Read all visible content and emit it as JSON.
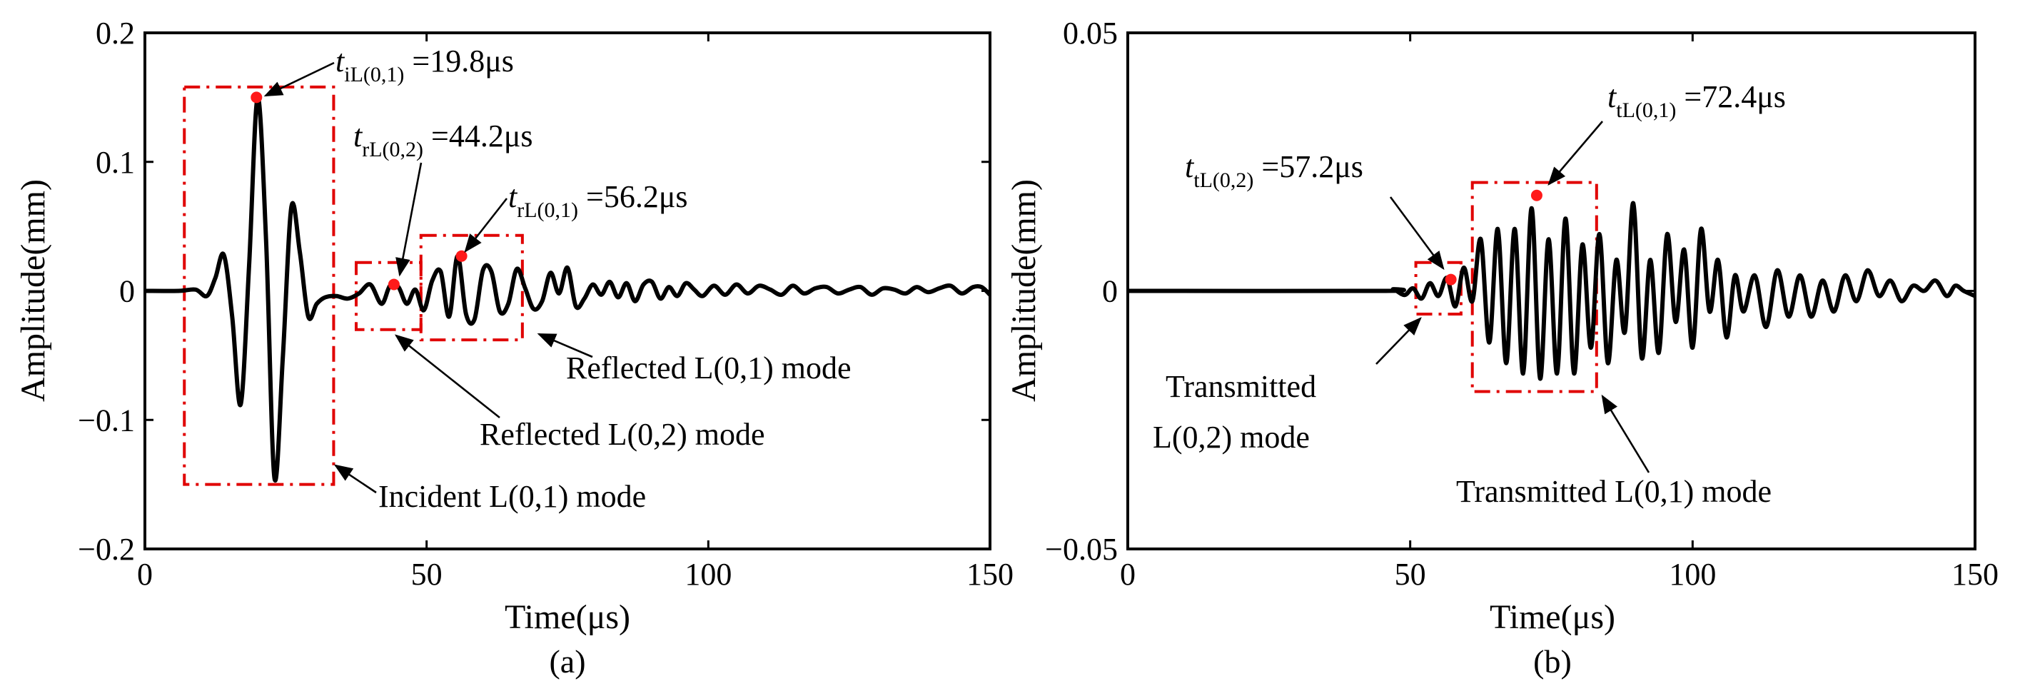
{
  "chart_data": [
    {
      "type": "line",
      "panel_label": "(a)",
      "xlabel": "Time(μs)",
      "ylabel": "Amplitude(mm)",
      "xlim": [
        0,
        150
      ],
      "ylim": [
        -0.2,
        0.2
      ],
      "xticks": [
        0,
        50,
        100,
        150
      ],
      "xtick_labels": [
        "0",
        "50",
        "100",
        "150"
      ],
      "yticks": [
        0.2,
        0.1,
        0,
        -0.1,
        -0.2
      ],
      "ytick_labels": [
        "0.2",
        "0.1",
        "0",
        "−0.1",
        "−0.2"
      ],
      "grid": false,
      "series": [
        {
          "x": [
            0,
            6,
            9,
            11,
            12.5,
            14,
            15.5,
            17,
            18.5,
            20,
            21.5,
            23,
            24.5,
            26,
            27.5,
            29,
            30.5,
            32,
            34,
            36,
            38,
            40,
            42,
            43.5,
            45,
            46.5,
            48,
            49.5,
            51,
            52.5,
            54,
            55.5,
            57,
            58.5,
            60,
            61.5,
            63,
            64.5,
            66,
            67.5,
            69,
            70.5,
            72,
            73.5,
            75,
            76.5,
            78,
            79.5,
            81,
            82.5,
            84,
            85.5,
            87,
            88.5,
            90,
            91.5,
            93,
            94.5,
            96,
            97.5,
            99,
            101,
            103,
            105,
            107,
            109,
            111,
            113,
            115,
            117,
            119,
            121,
            123,
            125,
            127,
            129,
            131,
            133,
            135,
            137,
            139,
            141,
            143,
            145,
            147,
            148.5,
            150
          ],
          "y": [
            0,
            0,
            0.001,
            -0.004,
            0.01,
            0.028,
            -0.02,
            -0.088,
            0.02,
            0.15,
            0.04,
            -0.145,
            -0.05,
            0.065,
            0.03,
            -0.02,
            -0.01,
            -0.005,
            -0.004,
            -0.006,
            -0.002,
            0.005,
            -0.01,
            0.004,
            0.003,
            -0.01,
            0.001,
            -0.015,
            0.008,
            0.015,
            -0.02,
            0.027,
            -0.018,
            -0.022,
            0.016,
            0.015,
            -0.016,
            -0.01,
            0.017,
            0.002,
            -0.014,
            -0.008,
            0.014,
            -0.002,
            0.018,
            -0.012,
            -0.006,
            0.005,
            -0.003,
            0.007,
            -0.005,
            0.006,
            -0.008,
            0.005,
            0.007,
            -0.006,
            0.003,
            -0.004,
            0.006,
            0.001,
            -0.004,
            0.004,
            -0.003,
            0.005,
            -0.002,
            0.004,
            0.001,
            -0.003,
            0.004,
            -0.002,
            0.002,
            0.003,
            -0.002,
            0.001,
            0.003,
            -0.003,
            0.002,
            0.001,
            -0.002,
            0.003,
            -0.001,
            0.002,
            0.004,
            -0.002,
            0.003,
            0.003,
            -0.003
          ]
        }
      ],
      "markers": [
        {
          "x": 19.8,
          "y": 0.15
        },
        {
          "x": 44.2,
          "y": 0.005
        },
        {
          "x": 56.2,
          "y": 0.027
        }
      ],
      "boxes": [
        {
          "x0": 7,
          "x1": 33.5,
          "y0": -0.15,
          "y1": 0.158
        },
        {
          "x0": 37.5,
          "x1": 49,
          "y0": -0.03,
          "y1": 0.022
        },
        {
          "x0": 49,
          "x1": 67,
          "y0": -0.038,
          "y1": 0.043
        }
      ],
      "annotations": [
        {
          "main": "t",
          "sub": "iL(0,1)",
          "rest": " =19.8μs"
        },
        {
          "main": "t",
          "sub": "rL(0,2)",
          "rest": " =44.2μs"
        },
        {
          "main": "t",
          "sub": "rL(0,1)",
          "rest": " =56.2μs"
        },
        {
          "text": "Reflected L(0,1) mode"
        },
        {
          "text": "Reflected L(0,2) mode"
        },
        {
          "text": "Incident L(0,1) mode"
        }
      ]
    },
    {
      "type": "line",
      "panel_label": "(b)",
      "xlabel": "Time(μs)",
      "ylabel": "Amplitude(mm)",
      "xlim": [
        0,
        150
      ],
      "ylim": [
        -0.05,
        0.05
      ],
      "xticks": [
        0,
        50,
        100,
        150
      ],
      "xtick_labels": [
        "0",
        "50",
        "100",
        "150"
      ],
      "yticks": [
        0.05,
        0,
        -0.05
      ],
      "ytick_labels": [
        "0.05",
        "0",
        "−0.05"
      ],
      "grid": false,
      "series": [
        {
          "x": [
            0,
            45,
            47,
            49,
            50.5,
            52,
            53.5,
            55,
            56.5,
            58,
            59.5,
            61,
            62.5,
            64,
            65.5,
            67,
            68.5,
            70,
            71.5,
            73,
            74.5,
            76,
            77.5,
            79,
            80.5,
            82,
            83.5,
            85,
            86.5,
            88,
            89.5,
            91,
            92.5,
            94,
            95.5,
            97,
            98.5,
            100,
            101.5,
            103,
            104.5,
            106,
            107.5,
            109,
            111,
            113,
            115,
            117,
            119,
            121,
            123,
            125,
            127,
            129,
            131,
            133,
            135,
            137,
            139,
            141,
            143,
            145,
            146.5,
            148,
            150
          ],
          "y": [
            0,
            0,
            0.0003,
            -0.0008,
            0.0005,
            -0.0015,
            0.0015,
            -0.001,
            0.0025,
            -0.003,
            0.0045,
            -0.002,
            0.01,
            -0.01,
            0.012,
            -0.014,
            0.012,
            -0.016,
            0.016,
            -0.017,
            0.01,
            -0.016,
            0.014,
            -0.016,
            0.009,
            -0.011,
            0.011,
            -0.014,
            0.006,
            -0.008,
            0.017,
            -0.013,
            0.006,
            -0.012,
            0.011,
            -0.006,
            0.008,
            -0.011,
            0.012,
            -0.004,
            0.006,
            -0.009,
            0.003,
            -0.004,
            0.003,
            -0.007,
            0.004,
            -0.005,
            0.003,
            -0.005,
            0.002,
            -0.004,
            0.003,
            -0.002,
            0.004,
            -0.001,
            0.002,
            -0.002,
            0.001,
            0.0,
            0.002,
            -0.001,
            0.001,
            0.0,
            -0.001
          ]
        }
      ],
      "markers": [
        {
          "x": 57.2,
          "y": 0.0022
        },
        {
          "x": 72.4,
          "y": 0.0185
        }
      ],
      "boxes": [
        {
          "x0": 51,
          "x1": 59,
          "y0": -0.0045,
          "y1": 0.0055
        },
        {
          "x0": 61,
          "x1": 83,
          "y0": -0.0195,
          "y1": 0.021
        }
      ],
      "annotations": [
        {
          "main": "t",
          "sub": "tL(0,2)",
          "rest": " =57.2μs"
        },
        {
          "main": "t",
          "sub": "tL(0,1)",
          "rest": " =72.4μs"
        },
        {
          "lines": [
            "Transmitted",
            "L(0,2)  mode"
          ]
        },
        {
          "text": "Transmitted L(0,1)  mode"
        }
      ]
    }
  ]
}
